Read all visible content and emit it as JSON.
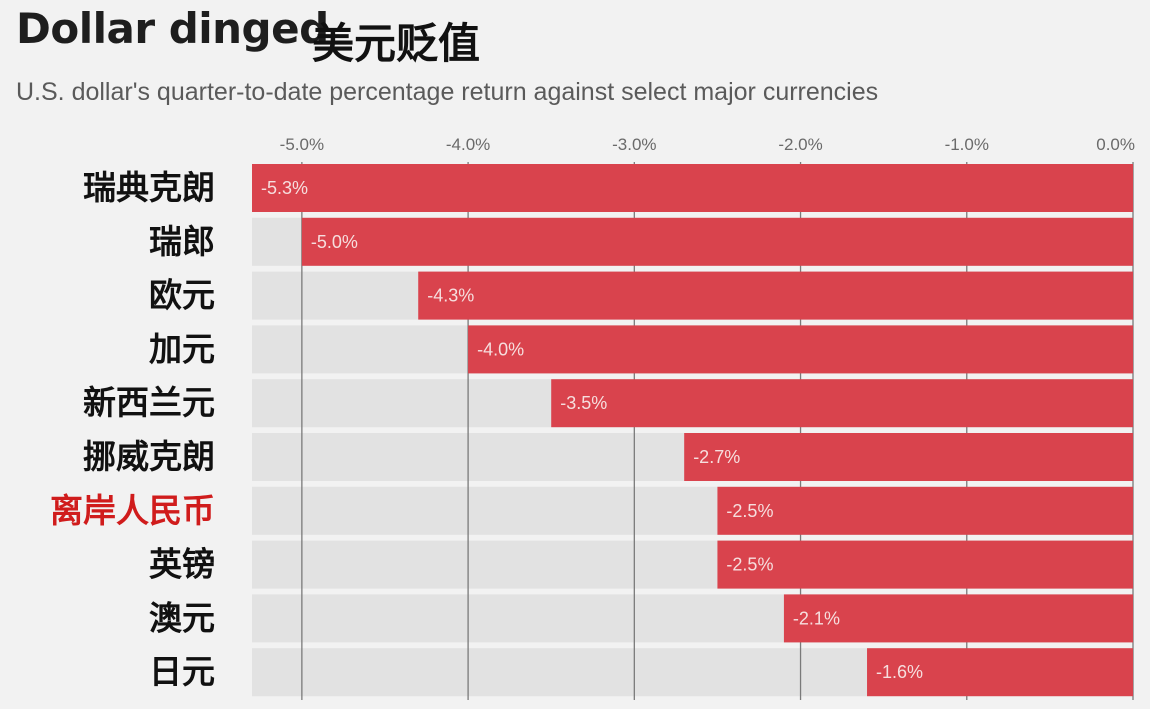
{
  "title_en": "Dollar dinged",
  "title_cn": "美元贬值",
  "subtitle": "U.S. dollar's quarter-to-date percentage return against select major currencies",
  "colors": {
    "bar": "#d9434d",
    "track": "#e2e2e2",
    "label_default": "#111111",
    "label_highlight": "#d01c1c",
    "grid": "#7a7a7a"
  },
  "chart_data": {
    "type": "bar",
    "orientation": "horizontal",
    "categories": [
      "瑞典克朗",
      "瑞郎",
      "欧元",
      "加元",
      "新西兰元",
      "挪威克朗",
      "离岸人民币",
      "英镑",
      "澳元",
      "日元"
    ],
    "values": [
      -5.3,
      -5.0,
      -4.3,
      -4.0,
      -3.5,
      -2.7,
      -2.5,
      -2.5,
      -2.1,
      -1.6
    ],
    "value_labels": [
      "-5.3%",
      "-5.0%",
      "-4.3%",
      "-4.0%",
      "-3.5%",
      "-2.7%",
      "-2.5%",
      "-2.5%",
      "-2.1%",
      "-1.6%"
    ],
    "highlight_category": "离岸人民币",
    "x_ticks": [
      -5,
      -4,
      -3,
      -2,
      -1,
      0
    ],
    "x_tick_labels": [
      "-5.0%",
      "-4.0%",
      "-3.0%",
      "-2.0%",
      "-1.0%",
      "0.0%"
    ],
    "xlim": [
      -5.3,
      0
    ],
    "xlabel": "",
    "ylabel": "",
    "grid": true,
    "axis_position": "top"
  }
}
